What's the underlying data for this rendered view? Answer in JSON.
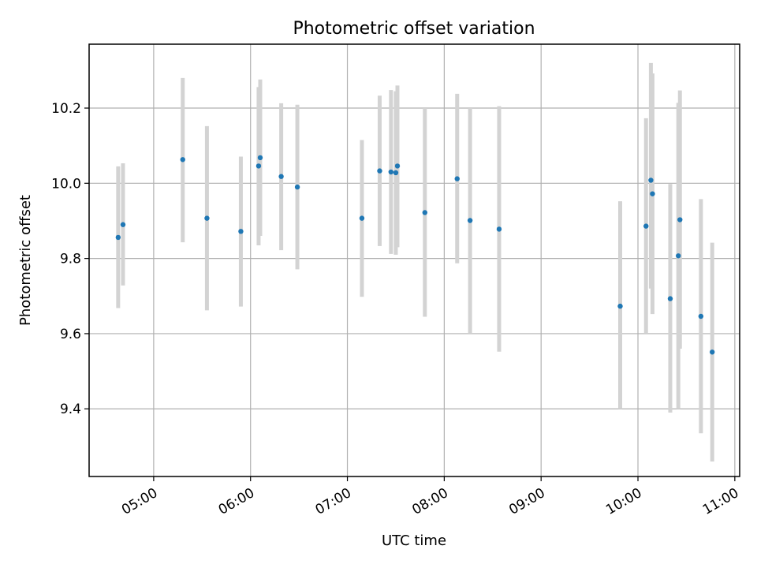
{
  "chart_data": {
    "type": "scatter",
    "title": "Photometric offset variation",
    "xlabel": "UTC time",
    "ylabel": "Photometric offset",
    "x_axis_type": "time",
    "xlim": [
      "04:20",
      "11:03"
    ],
    "ylim": [
      9.22,
      10.37
    ],
    "x_ticks": [
      "05:00",
      "06:00",
      "07:00",
      "08:00",
      "09:00",
      "10:00",
      "11:00"
    ],
    "y_ticks": [
      9.4,
      9.6,
      9.8,
      10.0,
      10.2
    ],
    "y_tick_labels": [
      "9.4",
      "9.6",
      "9.8",
      "10.0",
      "10.2"
    ],
    "grid": true,
    "legend": "none",
    "marker_color": "#1f77b4",
    "errorbar_color": "#d3d3d3",
    "points": [
      {
        "x": "04:38",
        "y": 9.856,
        "ylow": 9.668,
        "yhigh": 10.045
      },
      {
        "x": "04:41",
        "y": 9.89,
        "ylow": 9.728,
        "yhigh": 10.053
      },
      {
        "x": "05:18",
        "y": 10.063,
        "ylow": 9.843,
        "yhigh": 10.28
      },
      {
        "x": "05:33",
        "y": 9.907,
        "ylow": 9.662,
        "yhigh": 10.152
      },
      {
        "x": "05:54",
        "y": 9.872,
        "ylow": 9.672,
        "yhigh": 10.071
      },
      {
        "x": "06:05",
        "y": 10.046,
        "ylow": 9.835,
        "yhigh": 10.256
      },
      {
        "x": "06:06",
        "y": 10.068,
        "ylow": 9.86,
        "yhigh": 10.276
      },
      {
        "x": "06:19",
        "y": 10.018,
        "ylow": 9.822,
        "yhigh": 10.213
      },
      {
        "x": "06:29",
        "y": 9.99,
        "ylow": 9.771,
        "yhigh": 10.209
      },
      {
        "x": "07:09",
        "y": 9.907,
        "ylow": 9.698,
        "yhigh": 10.115
      },
      {
        "x": "07:20",
        "y": 10.033,
        "ylow": 9.833,
        "yhigh": 10.233
      },
      {
        "x": "07:27",
        "y": 10.03,
        "ylow": 9.812,
        "yhigh": 10.248
      },
      {
        "x": "07:30",
        "y": 10.028,
        "ylow": 9.81,
        "yhigh": 10.245
      },
      {
        "x": "07:31",
        "y": 10.046,
        "ylow": 9.83,
        "yhigh": 10.26
      },
      {
        "x": "07:48",
        "y": 9.922,
        "ylow": 9.645,
        "yhigh": 10.2
      },
      {
        "x": "08:08",
        "y": 10.012,
        "ylow": 9.787,
        "yhigh": 10.238
      },
      {
        "x": "08:16",
        "y": 9.901,
        "ylow": 9.6,
        "yhigh": 10.2
      },
      {
        "x": "08:34",
        "y": 9.878,
        "ylow": 9.552,
        "yhigh": 10.205
      },
      {
        "x": "09:49",
        "y": 9.673,
        "ylow": 9.4,
        "yhigh": 9.952
      },
      {
        "x": "10:05",
        "y": 9.886,
        "ylow": 9.6,
        "yhigh": 10.173
      },
      {
        "x": "10:08",
        "y": 10.008,
        "ylow": 9.72,
        "yhigh": 10.32
      },
      {
        "x": "10:09",
        "y": 9.972,
        "ylow": 9.652,
        "yhigh": 10.292
      },
      {
        "x": "10:20",
        "y": 9.693,
        "ylow": 9.39,
        "yhigh": 9.998
      },
      {
        "x": "10:25",
        "y": 9.807,
        "ylow": 9.4,
        "yhigh": 10.214
      },
      {
        "x": "10:26",
        "y": 9.903,
        "ylow": 9.56,
        "yhigh": 10.247
      },
      {
        "x": "10:39",
        "y": 9.646,
        "ylow": 9.335,
        "yhigh": 9.958
      },
      {
        "x": "10:46",
        "y": 9.551,
        "ylow": 9.26,
        "yhigh": 9.842
      }
    ]
  }
}
